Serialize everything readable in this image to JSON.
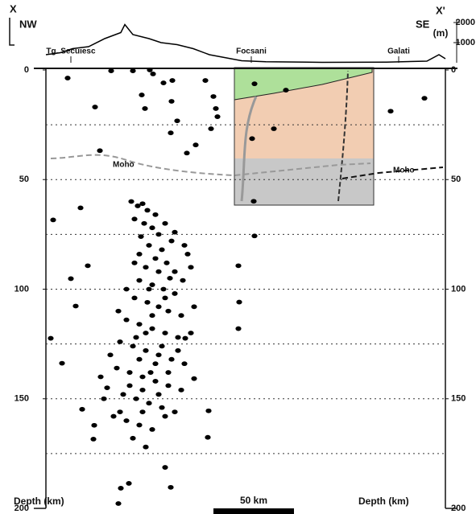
{
  "chart_data": {
    "type": "scatter",
    "ylabel": "Depth (km)",
    "xlim": [
      0,
      248
    ],
    "ylim": [
      0,
      200
    ],
    "y_inverted": true,
    "yticks": [
      0,
      50,
      100,
      150,
      200
    ],
    "gridlines": [
      25,
      50,
      75,
      100,
      125,
      150,
      175
    ],
    "color": "#000000",
    "x": [
      13.5,
      40.5,
      54,
      64.5,
      73,
      78.5,
      66.5,
      78,
      81.5,
      99,
      104,
      105.5,
      106.5,
      102.5,
      93,
      87.5,
      77.5,
      59.5,
      61.5,
      30.5,
      33.5,
      4.5,
      21.5,
      214,
      235,
      129.5,
      149,
      128,
      129,
      141.5,
      129.5,
      119.5,
      120,
      119.5,
      3,
      10,
      18.5,
      15.5,
      26,
      100.5,
      74,
      77.5,
      46.5,
      45,
      51.5,
      29.5,
      30,
      22.5,
      86.5,
      92,
      101,
      53,
      57,
      60,
      63,
      55,
      61,
      66,
      70,
      59,
      64,
      72,
      68,
      75,
      62,
      70,
      77,
      58,
      66,
      73,
      80,
      55,
      63,
      70,
      76,
      84,
      50,
      58,
      66,
      74,
      82,
      46,
      54,
      62,
      70,
      78,
      86,
      44,
      52,
      60,
      68,
      76,
      84,
      48,
      56,
      64,
      72,
      80,
      42,
      50,
      58,
      66,
      74,
      54,
      62,
      60,
      65,
      58,
      72,
      66,
      74,
      80,
      85,
      88,
      78,
      55,
      50,
      45,
      40,
      38,
      46,
      70,
      62,
      56,
      68,
      60,
      52,
      76,
      82,
      64,
      68,
      74,
      80,
      86,
      90,
      58,
      36,
      34,
      90,
      92
    ],
    "values": [
      3.7,
      0.4,
      0.4,
      0,
      5.9,
      4.8,
      1.8,
      14.3,
      23.2,
      4.8,
      12.1,
      17.6,
      21.3,
      26.8,
      34.2,
      37.9,
      28.7,
      11.4,
      17.6,
      16.9,
      36.8,
      68.4,
      62.9,
      18.8,
      12.9,
      6.3,
      9.2,
      31.3,
      59.9,
      26.8,
      75.7,
      89.3,
      105.9,
      118,
      122.4,
      133.8,
      107.7,
      95.2,
      89.3,
      167.6,
      181.3,
      190.4,
      190.8,
      197.8,
      188.6,
      168.4,
      162.1,
      154.8,
      122.4,
      140.8,
      155.5,
      60,
      62,
      61,
      64,
      68,
      70,
      72,
      75,
      76,
      80,
      82,
      86,
      88,
      90,
      92,
      95,
      96,
      98,
      100,
      102,
      104,
      106,
      108,
      110,
      112,
      114,
      116,
      118,
      120,
      122,
      124,
      126,
      128,
      130,
      132,
      134,
      136,
      138,
      140,
      142,
      144,
      146,
      148,
      150,
      152,
      154,
      156,
      158,
      160,
      162,
      164,
      158,
      168,
      172,
      146,
      138,
      132,
      126,
      112,
      104,
      92,
      96,
      84,
      78,
      88,
      100,
      110,
      130,
      145,
      156,
      148,
      120,
      122,
      134,
      156,
      144,
      138,
      128,
      100,
      66,
      70,
      74,
      80,
      90,
      84,
      150,
      140,
      120,
      108
    ],
    "profile": {
      "axis": "y2",
      "color": "#000000",
      "x": [
        0,
        9,
        16.5,
        26.5,
        36.5,
        46.5,
        49,
        54,
        64,
        71.5,
        81.5,
        91.5,
        101.5,
        111.5,
        121.5,
        136.5,
        171.5,
        211.5,
        236.5,
        244,
        248
      ],
      "values": [
        400,
        500,
        700,
        800,
        1200,
        1500,
        1900,
        1400,
        1200,
        1000,
        900,
        700,
        400,
        250,
        100,
        50,
        20,
        30,
        80,
        400,
        200
      ]
    },
    "y2lim": [
      0,
      2000
    ],
    "y2ticks": [
      1000,
      2000
    ],
    "y2label": "(m)",
    "ends": [
      "X",
      "X'"
    ],
    "directions": [
      "NW",
      "SE"
    ],
    "places": [
      {
        "label": "Tg. Secuiesc",
        "x": 15.5
      },
      {
        "label": "Focsani",
        "x": 127.5
      },
      {
        "label": "Galati",
        "x": 219
      }
    ],
    "annotations": [
      "Moho",
      "Moho"
    ],
    "scale_bar": {
      "label": "50 km",
      "length": 50
    }
  }
}
